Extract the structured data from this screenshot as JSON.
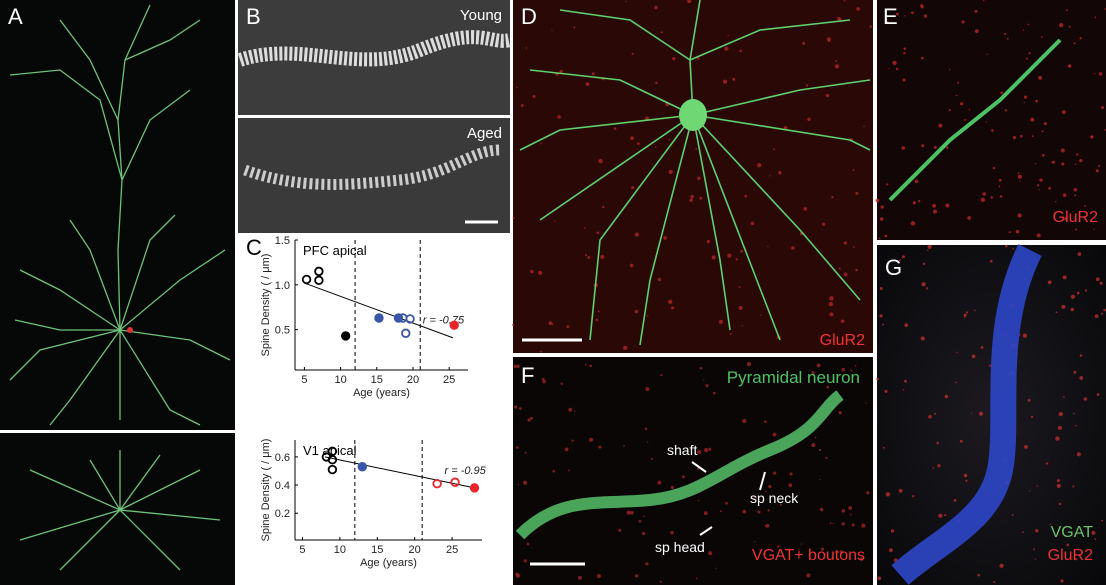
{
  "panels": {
    "a": "A",
    "b": "B",
    "young": "Young",
    "aged": "Aged",
    "c": "C",
    "d": "D",
    "d_stain": "GluR2",
    "e": "E",
    "e_stain": "GluR2",
    "f": "F",
    "f_neuron": "Pyramidal neuron",
    "f_shaft": "shaft",
    "f_neck": "sp neck",
    "f_head": "sp head",
    "f_boutons": "VGAT+ boutons",
    "g": "G",
    "g_vgat": "VGAT",
    "g_glur2": "GluR2"
  },
  "chart_data": [
    {
      "type": "scatter",
      "title": "PFC apical",
      "xlabel": "Age (years)",
      "ylabel": "Spine Density ( / μm)",
      "annotation": "r = -0.75",
      "xlim": [
        3.7,
        27.6
      ],
      "ylim": [
        0.05,
        1.5
      ],
      "xticks": [
        5,
        10,
        15,
        20,
        25
      ],
      "yticks": [
        0.5,
        {
          "value": 1,
          "label": "1.0"
        },
        1.5
      ],
      "vlines": [
        12,
        21
      ],
      "fit": {
        "x": [
          5,
          25.5
        ],
        "y": [
          1.02,
          0.41
        ]
      },
      "series": [
        {
          "color": "#000000",
          "filled": false,
          "x": [
            5.3,
            7,
            7
          ],
          "y": [
            1.06,
            1.15,
            1.05
          ]
        },
        {
          "color": "#000000",
          "filled": true,
          "x": [
            10.7
          ],
          "y": [
            0.43
          ]
        },
        {
          "color": "#3a56a8",
          "filled": true,
          "x": [
            15.3,
            18
          ],
          "y": [
            0.63,
            0.63
          ]
        },
        {
          "color": "#3a56a8",
          "filled": false,
          "x": [
            18.6,
            19.6,
            19
          ],
          "y": [
            0.63,
            0.62,
            0.46
          ]
        },
        {
          "color": "#e8262b",
          "filled": true,
          "x": [
            25.7
          ],
          "y": [
            0.55
          ]
        }
      ]
    },
    {
      "type": "scatter",
      "title": "V1 apical",
      "xlabel": "Age (years)",
      "ylabel": "Spine Density ( / μm)",
      "annotation": "r = -0.95",
      "xlim": [
        4,
        29
      ],
      "ylim": [
        0.01,
        0.72
      ],
      "xticks": [
        5,
        10,
        15,
        20,
        25
      ],
      "yticks": [
        0.2,
        0.4,
        0.6
      ],
      "vlines": [
        12,
        21
      ],
      "fit": {
        "x": [
          8,
          28
        ],
        "y": [
          0.6,
          0.38
        ]
      },
      "series": [
        {
          "color": "#000000",
          "filled": false,
          "x": [
            8.2,
            9,
            9,
            9
          ],
          "y": [
            0.6,
            0.64,
            0.58,
            0.51
          ]
        },
        {
          "color": "#3a56a8",
          "filled": true,
          "x": [
            13
          ],
          "y": [
            0.53
          ]
        },
        {
          "color": "#e8262b",
          "filled": false,
          "x": [
            23,
            25.4
          ],
          "y": [
            0.41,
            0.42
          ]
        },
        {
          "color": "#e8262b",
          "filled": true,
          "x": [
            28
          ],
          "y": [
            0.38
          ]
        }
      ]
    }
  ]
}
